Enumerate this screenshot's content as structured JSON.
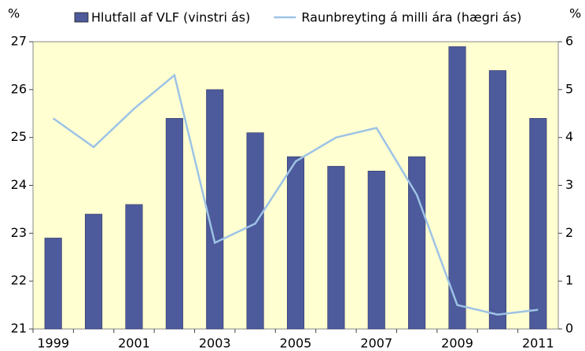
{
  "chart_data": {
    "type": "bar",
    "ylabel": "%",
    "y2label": "%",
    "categories": [
      "1999",
      null,
      "2001",
      null,
      "2003",
      null,
      "2005",
      null,
      "2007",
      null,
      "2009",
      null,
      "2011"
    ],
    "series": [
      {
        "name": "Hlutfall af VLF (vinstri ás)",
        "type": "bar",
        "color": "#4d5a9b",
        "values": [
          22.9,
          23.4,
          23.6,
          25.4,
          26.0,
          25.1,
          24.6,
          24.4,
          24.3,
          24.6,
          26.9,
          26.4,
          25.4
        ]
      },
      {
        "name": "Raunbreyting á milli ára (hægri ás)",
        "type": "line",
        "axis": "y2",
        "color": "#9dc3e6",
        "values": [
          4.4,
          3.8,
          4.6,
          5.3,
          1.8,
          2.2,
          3.5,
          4.0,
          4.2,
          2.8,
          0.5,
          0.3,
          0.4
        ]
      }
    ],
    "ylim": [
      21,
      27
    ],
    "yticks": [
      21,
      22,
      23,
      24,
      25,
      26,
      27
    ],
    "y2lim": [
      0,
      6
    ],
    "y2ticks": [
      0,
      1,
      2,
      3,
      4,
      5,
      6
    ],
    "background": "#ffffd2"
  }
}
